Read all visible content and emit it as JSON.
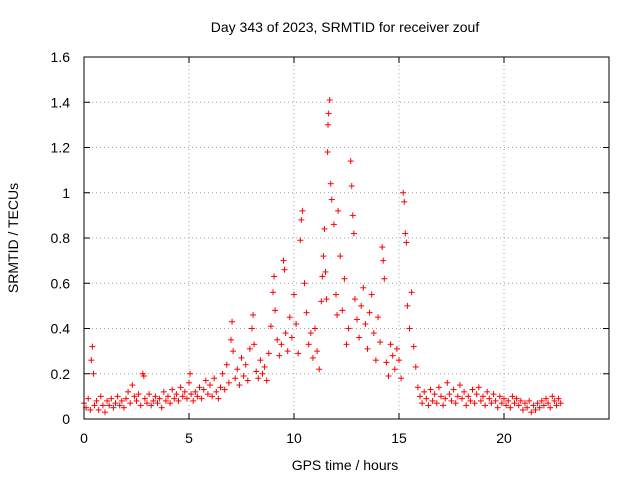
{
  "chart_data": {
    "type": "scatter",
    "title": "Day 343 of 2023, SRMTID for receiver zouf",
    "xlabel": "GPS time / hours",
    "ylabel": "SRMTID / TECUs",
    "xlim": [
      0,
      25
    ],
    "ylim": [
      0,
      1.6
    ],
    "xticks": [
      "0",
      "5",
      "10",
      "15",
      "20"
    ],
    "yticks": [
      "0",
      "0.2",
      "0.4",
      "0.6",
      "0.8",
      "1",
      "1.2",
      "1.4",
      "1.6"
    ],
    "grid": true,
    "marker": "plus",
    "color": "#ff0000",
    "series": [
      {
        "name": "SRMTID",
        "points": [
          [
            0.0,
            0.07
          ],
          [
            0.1,
            0.05
          ],
          [
            0.2,
            0.09
          ],
          [
            0.3,
            0.04
          ],
          [
            0.35,
            0.26
          ],
          [
            0.4,
            0.32
          ],
          [
            0.45,
            0.2
          ],
          [
            0.5,
            0.06
          ],
          [
            0.6,
            0.08
          ],
          [
            0.7,
            0.04
          ],
          [
            0.8,
            0.1
          ],
          [
            0.9,
            0.06
          ],
          [
            1.0,
            0.03
          ],
          [
            1.1,
            0.08
          ],
          [
            1.2,
            0.06
          ],
          [
            1.3,
            0.09
          ],
          [
            1.4,
            0.05
          ],
          [
            1.5,
            0.07
          ],
          [
            1.6,
            0.1
          ],
          [
            1.7,
            0.06
          ],
          [
            1.8,
            0.08
          ],
          [
            1.9,
            0.05
          ],
          [
            2.0,
            0.09
          ],
          [
            2.1,
            0.12
          ],
          [
            2.2,
            0.07
          ],
          [
            2.3,
            0.15
          ],
          [
            2.4,
            0.1
          ],
          [
            2.5,
            0.08
          ],
          [
            2.6,
            0.11
          ],
          [
            2.7,
            0.06
          ],
          [
            2.8,
            0.2
          ],
          [
            2.85,
            0.19
          ],
          [
            2.9,
            0.09
          ],
          [
            3.0,
            0.07
          ],
          [
            3.1,
            0.11
          ],
          [
            3.2,
            0.06
          ],
          [
            3.3,
            0.08
          ],
          [
            3.4,
            0.1
          ],
          [
            3.5,
            0.07
          ],
          [
            3.6,
            0.09
          ],
          [
            3.7,
            0.05
          ],
          [
            3.8,
            0.12
          ],
          [
            3.9,
            0.08
          ],
          [
            4.0,
            0.1
          ],
          [
            4.1,
            0.07
          ],
          [
            4.2,
            0.13
          ],
          [
            4.3,
            0.09
          ],
          [
            4.4,
            0.11
          ],
          [
            4.5,
            0.08
          ],
          [
            4.6,
            0.14
          ],
          [
            4.7,
            0.1
          ],
          [
            4.8,
            0.12
          ],
          [
            4.9,
            0.09
          ],
          [
            5.0,
            0.16
          ],
          [
            5.05,
            0.2
          ],
          [
            5.1,
            0.11
          ],
          [
            5.2,
            0.08
          ],
          [
            5.3,
            0.12
          ],
          [
            5.4,
            0.1
          ],
          [
            5.5,
            0.14
          ],
          [
            5.6,
            0.09
          ],
          [
            5.7,
            0.13
          ],
          [
            5.8,
            0.17
          ],
          [
            5.9,
            0.11
          ],
          [
            6.0,
            0.15
          ],
          [
            6.1,
            0.1
          ],
          [
            6.2,
            0.18
          ],
          [
            6.3,
            0.12
          ],
          [
            6.4,
            0.09
          ],
          [
            6.5,
            0.14
          ],
          [
            6.6,
            0.2
          ],
          [
            6.7,
            0.13
          ],
          [
            6.8,
            0.24
          ],
          [
            6.9,
            0.16
          ],
          [
            7.0,
            0.35
          ],
          [
            7.05,
            0.43
          ],
          [
            7.1,
            0.3
          ],
          [
            7.2,
            0.18
          ],
          [
            7.3,
            0.22
          ],
          [
            7.4,
            0.15
          ],
          [
            7.5,
            0.27
          ],
          [
            7.6,
            0.19
          ],
          [
            7.7,
            0.24
          ],
          [
            7.8,
            0.17
          ],
          [
            7.9,
            0.31
          ],
          [
            8.0,
            0.4
          ],
          [
            8.05,
            0.46
          ],
          [
            8.1,
            0.33
          ],
          [
            8.2,
            0.21
          ],
          [
            8.3,
            0.18
          ],
          [
            8.4,
            0.26
          ],
          [
            8.5,
            0.2
          ],
          [
            8.6,
            0.23
          ],
          [
            8.7,
            0.17
          ],
          [
            8.8,
            0.29
          ],
          [
            8.9,
            0.41
          ],
          [
            9.0,
            0.56
          ],
          [
            9.05,
            0.63
          ],
          [
            9.1,
            0.48
          ],
          [
            9.2,
            0.35
          ],
          [
            9.3,
            0.28
          ],
          [
            9.4,
            0.33
          ],
          [
            9.5,
            0.7
          ],
          [
            9.55,
            0.66
          ],
          [
            9.6,
            0.38
          ],
          [
            9.7,
            0.3
          ],
          [
            9.8,
            0.45
          ],
          [
            9.9,
            0.36
          ],
          [
            10.0,
            0.55
          ],
          [
            10.1,
            0.42
          ],
          [
            10.2,
            0.29
          ],
          [
            10.3,
            0.79
          ],
          [
            10.35,
            0.88
          ],
          [
            10.4,
            0.92
          ],
          [
            10.5,
            0.6
          ],
          [
            10.6,
            0.47
          ],
          [
            10.7,
            0.33
          ],
          [
            10.8,
            0.38
          ],
          [
            10.9,
            0.27
          ],
          [
            11.0,
            0.4
          ],
          [
            11.1,
            0.3
          ],
          [
            11.2,
            0.22
          ],
          [
            11.3,
            0.52
          ],
          [
            11.35,
            0.63
          ],
          [
            11.4,
            0.72
          ],
          [
            11.45,
            0.84
          ],
          [
            11.5,
            0.65
          ],
          [
            11.55,
            0.53
          ],
          [
            11.6,
            1.18
          ],
          [
            11.62,
            1.3
          ],
          [
            11.65,
            1.35
          ],
          [
            11.7,
            1.41
          ],
          [
            11.75,
            1.04
          ],
          [
            11.8,
            0.97
          ],
          [
            11.9,
            0.86
          ],
          [
            12.0,
            0.55
          ],
          [
            12.05,
            0.46
          ],
          [
            12.1,
            0.92
          ],
          [
            12.2,
            0.72
          ],
          [
            12.3,
            0.48
          ],
          [
            12.4,
            0.62
          ],
          [
            12.5,
            0.33
          ],
          [
            12.6,
            0.4
          ],
          [
            12.7,
            1.14
          ],
          [
            12.75,
            1.03
          ],
          [
            12.8,
            0.9
          ],
          [
            12.85,
            0.82
          ],
          [
            12.9,
            0.53
          ],
          [
            13.0,
            0.44
          ],
          [
            13.1,
            0.36
          ],
          [
            13.2,
            0.5
          ],
          [
            13.3,
            0.58
          ],
          [
            13.4,
            0.42
          ],
          [
            13.5,
            0.31
          ],
          [
            13.6,
            0.47
          ],
          [
            13.7,
            0.55
          ],
          [
            13.8,
            0.38
          ],
          [
            13.9,
            0.26
          ],
          [
            14.0,
            0.45
          ],
          [
            14.1,
            0.34
          ],
          [
            14.2,
            0.76
          ],
          [
            14.25,
            0.7
          ],
          [
            14.3,
            0.62
          ],
          [
            14.4,
            0.25
          ],
          [
            14.5,
            0.19
          ],
          [
            14.6,
            0.33
          ],
          [
            14.7,
            0.28
          ],
          [
            14.8,
            0.22
          ],
          [
            14.9,
            0.31
          ],
          [
            15.0,
            0.26
          ],
          [
            15.1,
            0.18
          ],
          [
            15.2,
            1.0
          ],
          [
            15.25,
            0.96
          ],
          [
            15.3,
            0.82
          ],
          [
            15.35,
            0.78
          ],
          [
            15.4,
            0.5
          ],
          [
            15.5,
            0.4
          ],
          [
            15.6,
            0.56
          ],
          [
            15.7,
            0.32
          ],
          [
            15.8,
            0.23
          ],
          [
            15.9,
            0.14
          ],
          [
            16.0,
            0.1
          ],
          [
            16.1,
            0.07
          ],
          [
            16.2,
            0.12
          ],
          [
            16.3,
            0.09
          ],
          [
            16.4,
            0.06
          ],
          [
            16.5,
            0.13
          ],
          [
            16.6,
            0.08
          ],
          [
            16.7,
            0.11
          ],
          [
            16.8,
            0.07
          ],
          [
            16.9,
            0.14
          ],
          [
            17.0,
            0.1
          ],
          [
            17.1,
            0.06
          ],
          [
            17.2,
            0.09
          ],
          [
            17.3,
            0.16
          ],
          [
            17.4,
            0.11
          ],
          [
            17.5,
            0.08
          ],
          [
            17.6,
            0.13
          ],
          [
            17.7,
            0.07
          ],
          [
            17.8,
            0.1
          ],
          [
            17.9,
            0.15
          ],
          [
            18.0,
            0.09
          ],
          [
            18.1,
            0.12
          ],
          [
            18.2,
            0.06
          ],
          [
            18.3,
            0.1
          ],
          [
            18.4,
            0.08
          ],
          [
            18.5,
            0.13
          ],
          [
            18.6,
            0.07
          ],
          [
            18.7,
            0.11
          ],
          [
            18.8,
            0.14
          ],
          [
            18.9,
            0.08
          ],
          [
            19.0,
            0.1
          ],
          [
            19.1,
            0.06
          ],
          [
            19.2,
            0.12
          ],
          [
            19.3,
            0.09
          ],
          [
            19.4,
            0.07
          ],
          [
            19.5,
            0.11
          ],
          [
            19.6,
            0.08
          ],
          [
            19.7,
            0.05
          ],
          [
            19.8,
            0.1
          ],
          [
            19.9,
            0.07
          ],
          [
            20.0,
            0.09
          ],
          [
            20.1,
            0.06
          ],
          [
            20.2,
            0.08
          ],
          [
            20.3,
            0.05
          ],
          [
            20.4,
            0.1
          ],
          [
            20.5,
            0.07
          ],
          [
            20.6,
            0.09
          ],
          [
            20.7,
            0.06
          ],
          [
            20.8,
            0.08
          ],
          [
            20.9,
            0.04
          ],
          [
            21.0,
            0.07
          ],
          [
            21.1,
            0.05
          ],
          [
            21.2,
            0.08
          ],
          [
            21.3,
            0.03
          ],
          [
            21.4,
            0.06
          ],
          [
            21.5,
            0.04
          ],
          [
            21.6,
            0.07
          ],
          [
            21.7,
            0.05
          ],
          [
            21.8,
            0.08
          ],
          [
            21.9,
            0.06
          ],
          [
            22.0,
            0.09
          ],
          [
            22.1,
            0.07
          ],
          [
            22.2,
            0.05
          ],
          [
            22.3,
            0.1
          ],
          [
            22.4,
            0.08
          ],
          [
            22.5,
            0.06
          ],
          [
            22.6,
            0.09
          ],
          [
            22.7,
            0.07
          ]
        ]
      }
    ]
  }
}
